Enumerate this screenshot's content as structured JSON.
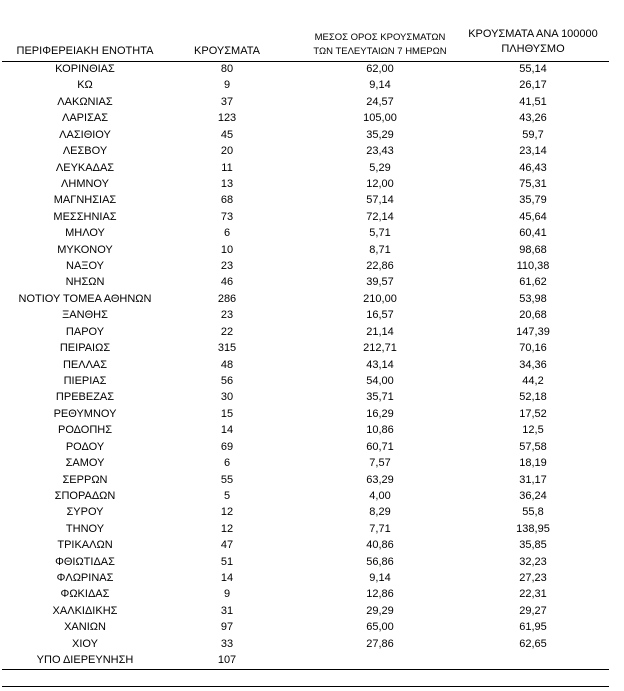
{
  "table": {
    "header": [
      [
        "ΠΕΡΙΦΕΡΕΙΑΚΗ ΕΝΟΤΗΤΑ"
      ],
      [
        "ΚΡΟΥΣΜΑΤΑ"
      ],
      [
        "ΜΕΣΟΣ ΟΡΟΣ ΚΡΟΥΣΜΑΤΩΝ",
        "ΤΩΝ ΤΕΛΕΥΤΑΙΩΝ 7 ΗΜΕΡΩΝ"
      ],
      [
        "ΚΡΟΥΣΜΑΤΑ ΑΝΑ 100000",
        "ΠΛΗΘΥΣΜΟ"
      ]
    ],
    "rows": [
      [
        "ΚΟΡΙΝΘΙΑΣ",
        "80",
        "62,00",
        "55,14"
      ],
      [
        "ΚΩ",
        "9",
        "9,14",
        "26,17"
      ],
      [
        "ΛΑΚΩΝΙΑΣ",
        "37",
        "24,57",
        "41,51"
      ],
      [
        "ΛΑΡΙΣΑΣ",
        "123",
        "105,00",
        "43,26"
      ],
      [
        "ΛΑΣΙΘΙΟΥ",
        "45",
        "35,29",
        "59,7"
      ],
      [
        "ΛΕΣΒΟΥ",
        "20",
        "23,43",
        "23,14"
      ],
      [
        "ΛΕΥΚΑΔΑΣ",
        "11",
        "5,29",
        "46,43"
      ],
      [
        "ΛΗΜΝΟΥ",
        "13",
        "12,00",
        "75,31"
      ],
      [
        "ΜΑΓΝΗΣΙΑΣ",
        "68",
        "57,14",
        "35,79"
      ],
      [
        "ΜΕΣΣΗΝΙΑΣ",
        "73",
        "72,14",
        "45,64"
      ],
      [
        "ΜΗΛΟΥ",
        "6",
        "5,71",
        "60,41"
      ],
      [
        "ΜΥΚΟΝΟΥ",
        "10",
        "8,71",
        "98,68"
      ],
      [
        "ΝΑΞΟΥ",
        "23",
        "22,86",
        "110,38"
      ],
      [
        "ΝΗΣΩΝ",
        "46",
        "39,57",
        "61,62"
      ],
      [
        "ΝΟΤΙΟΥ ΤΟΜΕΑ ΑΘΗΝΩΝ",
        "286",
        "210,00",
        "53,98"
      ],
      [
        "ΞΑΝΘΗΣ",
        "23",
        "16,57",
        "20,68"
      ],
      [
        "ΠΑΡΟΥ",
        "22",
        "21,14",
        "147,39"
      ],
      [
        "ΠΕΙΡΑΙΩΣ",
        "315",
        "212,71",
        "70,16"
      ],
      [
        "ΠΕΛΛΑΣ",
        "48",
        "43,14",
        "34,36"
      ],
      [
        "ΠΙΕΡΙΑΣ",
        "56",
        "54,00",
        "44,2"
      ],
      [
        "ΠΡΕΒΕΖΑΣ",
        "30",
        "35,71",
        "52,18"
      ],
      [
        "ΡΕΘΥΜΝΟΥ",
        "15",
        "16,29",
        "17,52"
      ],
      [
        "ΡΟΔΟΠΗΣ",
        "14",
        "10,86",
        "12,5"
      ],
      [
        "ΡΟΔΟΥ",
        "69",
        "60,71",
        "57,58"
      ],
      [
        "ΣΑΜΟΥ",
        "6",
        "7,57",
        "18,19"
      ],
      [
        "ΣΕΡΡΩΝ",
        "55",
        "63,29",
        "31,17"
      ],
      [
        "ΣΠΟΡΑΔΩΝ",
        "5",
        "4,00",
        "36,24"
      ],
      [
        "ΣΥΡΟΥ",
        "12",
        "8,29",
        "55,8"
      ],
      [
        "ΤΗΝΟΥ",
        "12",
        "7,71",
        "138,95"
      ],
      [
        "ΤΡΙΚΑΛΩΝ",
        "47",
        "40,86",
        "35,85"
      ],
      [
        "ΦΘΙΩΤΙΔΑΣ",
        "51",
        "56,86",
        "32,23"
      ],
      [
        "ΦΛΩΡΙΝΑΣ",
        "14",
        "9,14",
        "27,23"
      ],
      [
        "ΦΩΚΙΔΑΣ",
        "9",
        "12,86",
        "22,31"
      ],
      [
        "ΧΑΛΚΙΔΙΚΗΣ",
        "31",
        "29,29",
        "29,27"
      ],
      [
        "ΧΑΝΙΩΝ",
        "97",
        "65,00",
        "61,95"
      ],
      [
        "ΧΙΟΥ",
        "33",
        "27,86",
        "62,65"
      ],
      [
        "ΥΠΟ ΔΙΕΡΕΥΝΗΣΗ",
        "107"
      ]
    ]
  }
}
